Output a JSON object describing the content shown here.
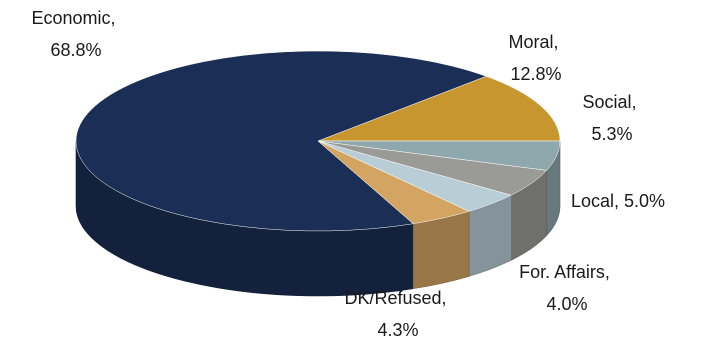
{
  "chart_data": {
    "type": "pie",
    "style": "3d-tilted",
    "slices": [
      {
        "label": "Economic",
        "value": 68.8,
        "display": "68.8%",
        "color": "#1b2e55"
      },
      {
        "label": "Moral",
        "value": 12.8,
        "display": "12.8%",
        "color": "#c8962e"
      },
      {
        "label": "Social",
        "value": 5.3,
        "display": "5.3%",
        "color": "#8fa8ae"
      },
      {
        "label": "Local",
        "value": 5.0,
        "display": "5.0%",
        "color": "#9a9a96"
      },
      {
        "label": "For. Affairs",
        "value": 4.0,
        "display": "4.0%",
        "color": "#b9cdd7"
      },
      {
        "label": "DK/Refused",
        "value": 4.3,
        "display": "4.3%",
        "color": "#d4a463"
      }
    ],
    "label_texts": {
      "economic": [
        "Economic,",
        "68.8%"
      ],
      "moral": [
        "Moral,",
        "12.8%"
      ],
      "social": [
        "Social,",
        "5.3%"
      ],
      "local": [
        "Local, 5.0%"
      ],
      "foreign": [
        "For. Affairs,",
        "4.0%"
      ],
      "dk": [
        "DK/Refused,",
        "4.3%"
      ]
    },
    "title": "",
    "legend": "none"
  }
}
